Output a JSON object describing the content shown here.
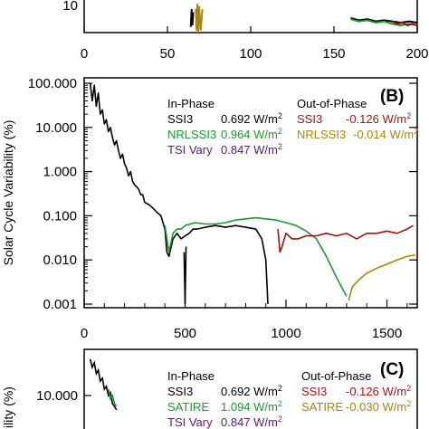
{
  "colors": {
    "ssi3": "#000000",
    "nrlssi3": "#1a9a2e",
    "satire": "#1a9a2e",
    "tsi": "#5a1a6e",
    "ssi3_out": "#9a1414",
    "nrlssi3_out": "#a8860c"
  },
  "chart_data": [
    {
      "panel": "A",
      "type": "line",
      "xlim": [
        0,
        200
      ],
      "x_ticks": [
        "0",
        "50",
        "100",
        "150",
        "200"
      ],
      "y_ticks_visible": [
        "10"
      ],
      "series": [
        {
          "color_key": "ssi3",
          "x": [
            64,
            64.5,
            65,
            65.5
          ],
          "y": [
            11,
            30,
            12,
            25
          ]
        },
        {
          "color_key": "nrlssi3_out",
          "x": [
            67,
            67.5,
            68,
            68.5,
            69,
            70,
            71
          ],
          "y": [
            30,
            9,
            40,
            8,
            35,
            9,
            30
          ]
        },
        {
          "color_key": "ssi3",
          "x": [
            160,
            165,
            170,
            175,
            180,
            185,
            190,
            195,
            200
          ],
          "y": [
            18,
            16,
            17,
            15,
            16,
            15,
            14,
            15,
            14
          ]
        },
        {
          "color_key": "nrlssi3",
          "x": [
            160,
            165,
            170,
            175,
            180,
            185,
            190,
            195,
            200
          ],
          "y": [
            17,
            15,
            16,
            14,
            15,
            13,
            12,
            13,
            12
          ]
        },
        {
          "color_key": "ssi3_out",
          "x": [
            185,
            188,
            191,
            194,
            197,
            200
          ],
          "y": [
            15,
            13,
            14,
            12,
            13,
            12
          ]
        }
      ]
    },
    {
      "panel": "B",
      "type": "line",
      "ylabel": "Solar Cycle Variability (%)",
      "xlim": [
        0,
        1650
      ],
      "ylim": [
        0.001,
        100
      ],
      "yscale": "log",
      "x_ticks": [
        "0",
        "500",
        "1000",
        "1500"
      ],
      "y_ticks": [
        "100.000",
        "10.000",
        "1.000",
        "0.100",
        "0.010",
        "0.001"
      ],
      "legend": {
        "in_phase": "In-Phase",
        "out_of_phase": "Out-of-Phase",
        "entries": [
          {
            "name": "SSI3",
            "value": "0.692 W/m",
            "color_key": "ssi3"
          },
          {
            "name": "NRLSSI3",
            "value": "0.964 W/m",
            "color_key": "nrlssi3"
          },
          {
            "name": "TSI Vary",
            "value": "0.847 W/m",
            "color_key": "tsi"
          },
          {
            "name": "SSI3",
            "value": "-0.126 W/m",
            "color_key": "ssi3_out"
          },
          {
            "name": "NRLSSI3",
            "value": "-0.014 W/m",
            "color_key": "nrlssi3_out"
          }
        ],
        "superscript": "2"
      },
      "panel_label": "(B)",
      "series": [
        {
          "color_key": "ssi3",
          "x": [
            30,
            40,
            50,
            60,
            70,
            80,
            90,
            100,
            110,
            120,
            130,
            140,
            150,
            160,
            170,
            180,
            190,
            200,
            210,
            220,
            230,
            240,
            250,
            260,
            270,
            280,
            290,
            300,
            320,
            340,
            360,
            380,
            400,
            410,
            420,
            440,
            460,
            480,
            500,
            520,
            540,
            560,
            600,
            650,
            700,
            750,
            800,
            850,
            880,
            900,
            910
          ],
          "y": [
            100,
            40,
            90,
            30,
            60,
            20,
            25,
            12,
            15,
            8,
            10,
            6,
            4,
            5,
            3,
            2,
            2.5,
            1.5,
            1.2,
            0.8,
            1,
            0.6,
            0.5,
            0.45,
            0.4,
            0.3,
            0.3,
            0.2,
            0.18,
            0.15,
            0.12,
            0.1,
            0.05,
            0.015,
            0.012,
            0.03,
            0.04,
            0.03,
            0.035,
            0.04,
            0.05,
            0.05,
            0.055,
            0.06,
            0.055,
            0.06,
            0.055,
            0.05,
            0.03,
            0.01,
            0.001
          ]
        },
        {
          "color_key": "nrlssi3",
          "x": [
            400,
            420,
            440,
            460,
            480,
            500,
            550,
            600,
            650,
            700,
            750,
            800,
            850,
            900,
            950,
            1000,
            1050,
            1100,
            1150,
            1200,
            1250,
            1300
          ],
          "y": [
            0.06,
            0.015,
            0.04,
            0.05,
            0.05,
            0.06,
            0.07,
            0.065,
            0.065,
            0.07,
            0.08,
            0.085,
            0.09,
            0.085,
            0.08,
            0.07,
            0.06,
            0.045,
            0.03,
            0.012,
            0.004,
            0.0015
          ]
        },
        {
          "color_key": "ssi3_out",
          "x": [
            960,
            970,
            980,
            1000,
            1030,
            1060,
            1100,
            1150,
            1200,
            1250,
            1300,
            1350,
            1400,
            1450,
            1500,
            1550,
            1600,
            1630
          ],
          "y": [
            0.05,
            0.015,
            0.02,
            0.04,
            0.03,
            0.03,
            0.035,
            0.035,
            0.04,
            0.035,
            0.04,
            0.03,
            0.04,
            0.04,
            0.045,
            0.04,
            0.05,
            0.06
          ]
        },
        {
          "color_key": "nrlssi3_out",
          "x": [
            1310,
            1320,
            1330,
            1360,
            1400,
            1450,
            1500,
            1550,
            1600,
            1640
          ],
          "y": [
            0.0012,
            0.0018,
            0.0025,
            0.0035,
            0.005,
            0.0065,
            0.008,
            0.01,
            0.012,
            0.013
          ]
        },
        {
          "color_key": "ssi3",
          "x": [
            495,
            500,
            505
          ],
          "y": [
            0.015,
            0.001,
            0.02
          ]
        }
      ]
    },
    {
      "panel": "C",
      "type": "line",
      "ylabel": "ility (%)",
      "y_ticks_visible": [
        "10.000"
      ],
      "legend": {
        "in_phase": "In-Phase",
        "out_of_phase": "Out-of-Phase",
        "entries": [
          {
            "name": "SSI3",
            "value": "0.692 W/m",
            "color_key": "ssi3"
          },
          {
            "name": "SATIRE",
            "value": "1.094 W/m",
            "color_key": "satire"
          },
          {
            "name": "TSI Vary",
            "value": "0.847 W/m",
            "color_key": "tsi"
          },
          {
            "name": "SSI3",
            "value": "-0.126 W/m",
            "color_key": "ssi3_out"
          },
          {
            "name": "SATIRE",
            "value": "-0.030 W/m",
            "color_key": "nrlssi3_out"
          }
        ],
        "superscript": "2"
      },
      "panel_label": "(C)",
      "series": [
        {
          "color_key": "ssi3",
          "x": [
            30,
            40,
            50,
            60,
            70,
            80,
            90,
            100,
            110,
            120,
            130,
            140,
            150,
            160
          ],
          "y": [
            100,
            60,
            80,
            40,
            50,
            25,
            30,
            15,
            18,
            10,
            12,
            6,
            5,
            4
          ]
        },
        {
          "color_key": "satire",
          "x": [
            120,
            130,
            140,
            150,
            160
          ],
          "y": [
            15,
            8,
            10,
            6,
            5
          ]
        }
      ]
    }
  ]
}
